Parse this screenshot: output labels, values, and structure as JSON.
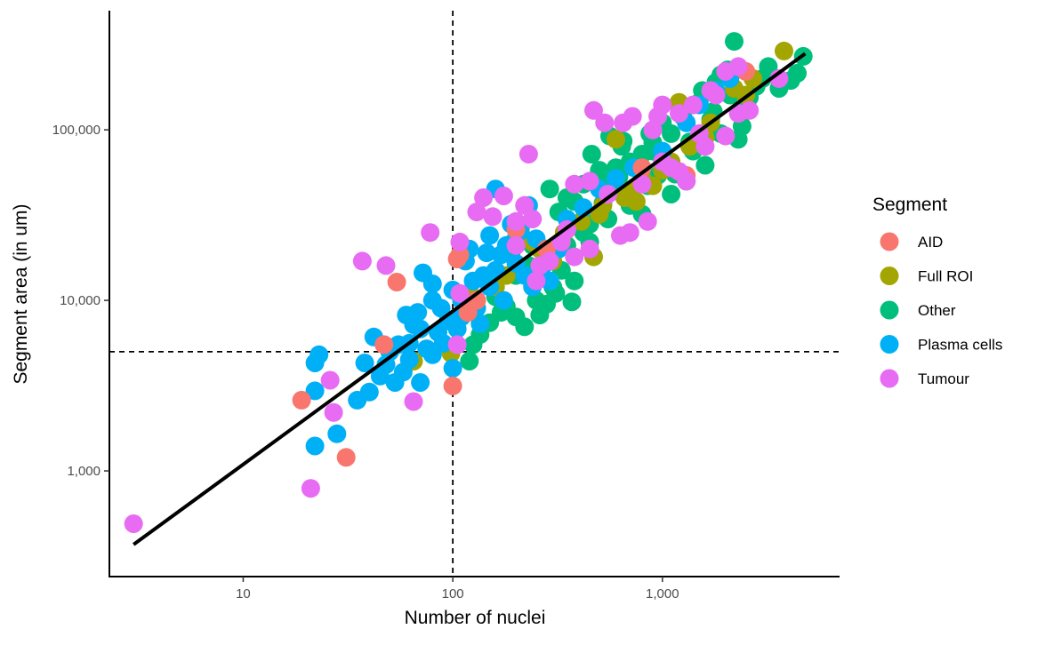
{
  "chart_data": {
    "type": "scatter",
    "x_scale": "log10",
    "y_scale": "log10",
    "xlabel": "Number of nuclei",
    "ylabel": "Segment area (in um)",
    "xlim": [
      2.3,
      7000
    ],
    "ylim": [
      240,
      500000
    ],
    "x_ticks": [
      {
        "value": 10,
        "label": "10"
      },
      {
        "value": 100,
        "label": "100"
      },
      {
        "value": 1000,
        "label": "1,000"
      }
    ],
    "y_ticks": [
      {
        "value": 1000,
        "label": "1,000"
      },
      {
        "value": 10000,
        "label": "10,000"
      },
      {
        "value": 100000,
        "label": "100,000"
      }
    ],
    "grid": false,
    "reference_lines": [
      {
        "orientation": "vertical",
        "value": 100,
        "style": "dashed"
      },
      {
        "orientation": "horizontal",
        "value": 5000,
        "style": "dashed"
      }
    ],
    "trend_line": {
      "from": [
        3,
        370
      ],
      "to": [
        4800,
        280000
      ]
    },
    "legend": {
      "title": "Segment",
      "position": "right",
      "entries": [
        "AID",
        "Full ROI",
        "Other",
        "Plasma cells",
        "Tumour"
      ]
    },
    "colors": {
      "AID": "#F8766D",
      "Full ROI": "#A3A500",
      "Other": "#00BF7D",
      "Plasma cells": "#00B0F6",
      "Tumour": "#E76BF3",
      "axis": "#000000",
      "tick_label": "#4D4D4D"
    },
    "series": [
      {
        "name": "Other",
        "points": [
          [
            2200,
            330000
          ],
          [
            4700,
            270000
          ],
          [
            3200,
            235000
          ],
          [
            1900,
            210000
          ],
          [
            2800,
            180000
          ],
          [
            1550,
            170000
          ],
          [
            4100,
            195000
          ],
          [
            1200,
            140000
          ],
          [
            2100,
            160000
          ],
          [
            2500,
            130000
          ],
          [
            1700,
            115000
          ],
          [
            2300,
            88000
          ],
          [
            1400,
            75000
          ],
          [
            1900,
            95000
          ],
          [
            1000,
            110000
          ],
          [
            900,
            84000
          ],
          [
            800,
            72000
          ],
          [
            700,
            65000
          ],
          [
            1150,
            55000
          ],
          [
            1600,
            62000
          ],
          [
            600,
            45000
          ],
          [
            500,
            50000
          ],
          [
            700,
            36000
          ],
          [
            550,
            30000
          ],
          [
            450,
            28000
          ],
          [
            800,
            32000
          ],
          [
            1100,
            42000
          ],
          [
            1300,
            50000
          ],
          [
            420,
            25000
          ],
          [
            350,
            21000
          ],
          [
            330,
            15000
          ],
          [
            300,
            12000
          ],
          [
            250,
            10000
          ],
          [
            200,
            8000
          ],
          [
            180,
            9200
          ],
          [
            280,
            9500
          ],
          [
            370,
            9800
          ],
          [
            220,
            7000
          ],
          [
            170,
            8500
          ],
          [
            150,
            7400
          ],
          [
            135,
            6300
          ],
          [
            125,
            5500
          ],
          [
            120,
            4400
          ],
          [
            260,
            8200
          ],
          [
            310,
            11000
          ],
          [
            380,
            13000
          ],
          [
            460,
            72000
          ],
          [
            560,
            92000
          ],
          [
            640,
            80000
          ],
          [
            750,
            62000
          ],
          [
            850,
            47000
          ],
          [
            950,
            54000
          ],
          [
            1350,
            85000
          ],
          [
            1750,
            128000
          ],
          [
            3000,
            200000
          ],
          [
            3600,
            175000
          ],
          [
            2600,
            155000
          ],
          [
            290,
            45000
          ],
          [
            320,
            33000
          ],
          [
            240,
            21000
          ],
          [
            190,
            19000
          ],
          [
            210,
            26000
          ],
          [
            350,
            40000
          ],
          [
            420,
            48000
          ],
          [
            520,
            37000
          ],
          [
            620,
            53000
          ],
          [
            1050,
            66000
          ],
          [
            1250,
            120000
          ],
          [
            1500,
            145000
          ],
          [
            2050,
            225000
          ],
          [
            4400,
            215000
          ],
          [
            1800,
            190000
          ],
          [
            600,
            60000
          ],
          [
            700,
            44000
          ],
          [
            380,
            38000
          ],
          [
            450,
            22000
          ],
          [
            160,
            10500
          ],
          [
            200,
            14000
          ],
          [
            230,
            16000
          ],
          [
            900,
            75000
          ],
          [
            1100,
            95000
          ],
          [
            2400,
            105000
          ],
          [
            500,
            58000
          ],
          [
            650,
            86000
          ],
          [
            870,
            95000
          ]
        ]
      },
      {
        "name": "Full ROI",
        "points": [
          [
            3800,
            290000
          ],
          [
            2700,
            200000
          ],
          [
            2200,
            175000
          ],
          [
            1200,
            145000
          ],
          [
            1600,
            90000
          ],
          [
            1100,
            65000
          ],
          [
            800,
            52000
          ],
          [
            600,
            88000
          ],
          [
            660,
            40000
          ],
          [
            500,
            32000
          ],
          [
            470,
            18000
          ],
          [
            410,
            29000
          ],
          [
            340,
            25000
          ],
          [
            300,
            17000
          ],
          [
            240,
            22000
          ],
          [
            160,
            12000
          ],
          [
            120,
            11000
          ],
          [
            98,
            4900
          ],
          [
            65,
            4400
          ],
          [
            1000,
            58000
          ],
          [
            2500,
            160000
          ],
          [
            900,
            47000
          ],
          [
            700,
            44000
          ],
          [
            1350,
            80000
          ],
          [
            180,
            14000
          ],
          [
            260,
            20000
          ],
          [
            520,
            36000
          ],
          [
            750,
            38000
          ],
          [
            1700,
            110000
          ]
        ]
      },
      {
        "name": "Plasma cells",
        "points": [
          [
            160,
            45000
          ],
          [
            230,
            36000
          ],
          [
            190,
            28000
          ],
          [
            150,
            24000
          ],
          [
            120,
            20000
          ],
          [
            115,
            17000
          ],
          [
            100,
            11500
          ],
          [
            80,
            12500
          ],
          [
            72,
            14500
          ],
          [
            80,
            10000
          ],
          [
            68,
            8500
          ],
          [
            60,
            8200
          ],
          [
            65,
            7200
          ],
          [
            70,
            6800
          ],
          [
            55,
            5500
          ],
          [
            50,
            5000
          ],
          [
            42,
            6100
          ],
          [
            38,
            4300
          ],
          [
            45,
            3600
          ],
          [
            40,
            2900
          ],
          [
            35,
            2600
          ],
          [
            28,
            1650
          ],
          [
            22,
            1400
          ],
          [
            22,
            2950
          ],
          [
            22,
            4300
          ],
          [
            23,
            4800
          ],
          [
            53,
            3300
          ],
          [
            70,
            3300
          ],
          [
            58,
            3800
          ],
          [
            62,
            4500
          ],
          [
            90,
            5600
          ],
          [
            80,
            4800
          ],
          [
            100,
            4000
          ],
          [
            105,
            6800
          ],
          [
            120,
            9500
          ],
          [
            130,
            9000
          ],
          [
            140,
            14000
          ],
          [
            135,
            7300
          ],
          [
            160,
            15000
          ],
          [
            170,
            18500
          ],
          [
            195,
            22000
          ],
          [
            210,
            25500
          ],
          [
            250,
            23000
          ],
          [
            270,
            16000
          ],
          [
            290,
            13000
          ],
          [
            350,
            30000
          ],
          [
            420,
            35000
          ],
          [
            500,
            45000
          ],
          [
            600,
            52000
          ],
          [
            730,
            60000
          ],
          [
            1000,
            75000
          ],
          [
            1300,
            110000
          ],
          [
            1500,
            140000
          ],
          [
            1800,
            170000
          ],
          [
            2100,
            200000
          ],
          [
            150,
            12000
          ],
          [
            175,
            10000
          ],
          [
            200,
            16500
          ],
          [
            240,
            12000
          ],
          [
            320,
            20000
          ],
          [
            110,
            8000
          ],
          [
            95,
            7600
          ],
          [
            125,
            13000
          ],
          [
            145,
            19000
          ],
          [
            180,
            21000
          ],
          [
            220,
            14000
          ],
          [
            85,
            6500
          ],
          [
            75,
            5200
          ],
          [
            48,
            4200
          ],
          [
            62,
            5600
          ],
          [
            88,
            9000
          ],
          [
            110,
            10000
          ]
        ]
      },
      {
        "name": "AID",
        "points": [
          [
            54,
            12800
          ],
          [
            105,
            17500
          ],
          [
            108,
            18500
          ],
          [
            118,
            8500
          ],
          [
            100,
            3150
          ],
          [
            47,
            5500
          ],
          [
            19,
            2600
          ],
          [
            31,
            1200
          ],
          [
            130,
            10000
          ],
          [
            200,
            26000
          ],
          [
            280,
            20000
          ],
          [
            800,
            60000
          ],
          [
            1300,
            54000
          ],
          [
            2500,
            220000
          ]
        ]
      },
      {
        "name": "Tumour",
        "points": [
          [
            3,
            490
          ],
          [
            21,
            790
          ],
          [
            26,
            3400
          ],
          [
            27,
            2200
          ],
          [
            37,
            17000
          ],
          [
            48,
            16000
          ],
          [
            78,
            25000
          ],
          [
            65,
            2550
          ],
          [
            105,
            5500
          ],
          [
            108,
            11000
          ],
          [
            108,
            22000
          ],
          [
            140,
            40000
          ],
          [
            155,
            31000
          ],
          [
            175,
            41000
          ],
          [
            230,
            72000
          ],
          [
            220,
            36000
          ],
          [
            200,
            29000
          ],
          [
            260,
            16000
          ],
          [
            290,
            17000
          ],
          [
            330,
            22000
          ],
          [
            380,
            48000
          ],
          [
            450,
            50000
          ],
          [
            470,
            130000
          ],
          [
            530,
            110000
          ],
          [
            650,
            110000
          ],
          [
            720,
            120000
          ],
          [
            900,
            100000
          ],
          [
            950,
            120000
          ],
          [
            1000,
            140000
          ],
          [
            1200,
            125000
          ],
          [
            1400,
            140000
          ],
          [
            1700,
            170000
          ],
          [
            2000,
            220000
          ],
          [
            2300,
            235000
          ],
          [
            3600,
            200000
          ],
          [
            1100,
            60000
          ],
          [
            1300,
            50000
          ],
          [
            850,
            29000
          ],
          [
            700,
            25000
          ],
          [
            450,
            20000
          ],
          [
            380,
            18000
          ],
          [
            630,
            24000
          ],
          [
            1500,
            95000
          ],
          [
            2000,
            92000
          ],
          [
            2300,
            125000
          ],
          [
            1200,
            57000
          ],
          [
            1600,
            80000
          ],
          [
            800,
            48000
          ],
          [
            130,
            33000
          ],
          [
            250,
            13000
          ],
          [
            200,
            21000
          ],
          [
            1800,
            160000
          ],
          [
            550,
            42000
          ],
          [
            240,
            30000
          ],
          [
            350,
            26000
          ],
          [
            1000,
            65000
          ],
          [
            2600,
            130000
          ]
        ]
      }
    ]
  }
}
